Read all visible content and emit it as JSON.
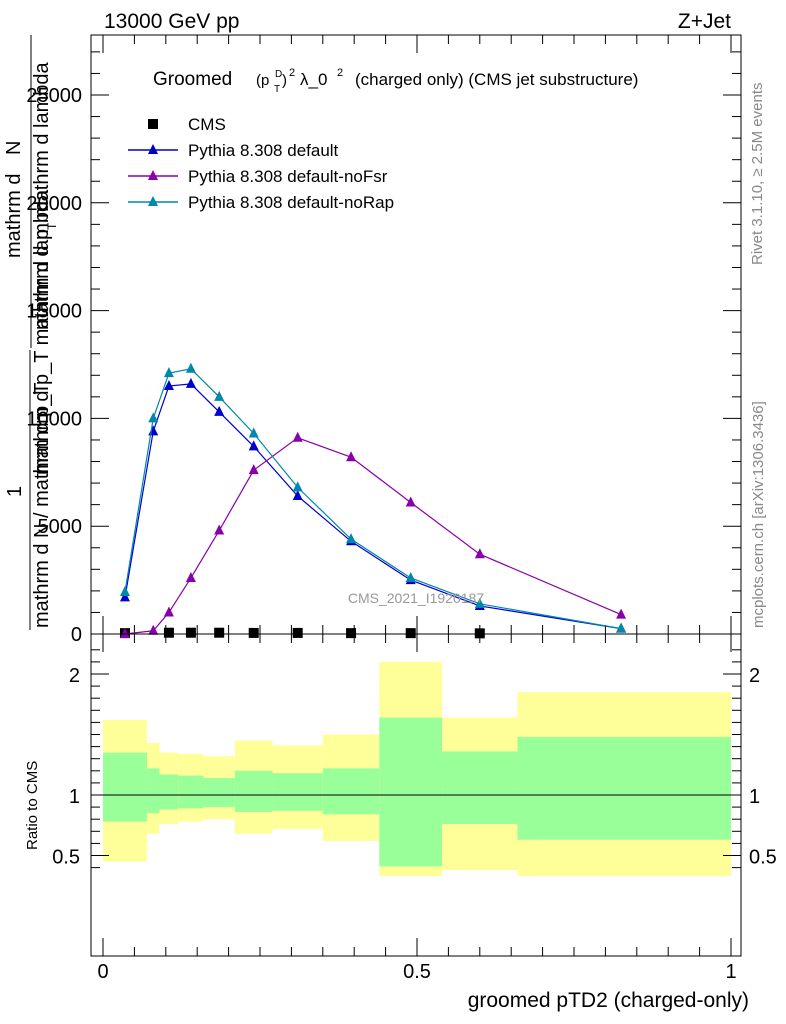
{
  "header": {
    "left": "13000 GeV pp",
    "right": "Z+Jet"
  },
  "side_text": {
    "rivet": "Rivet 3.1.10, ≥ 2.5M events",
    "mcplots": "mcplots.cern.ch [arXiv:1306.3436]"
  },
  "watermark": "CMS_2021_I1920187",
  "title": {
    "main": "Groomed",
    "p": "(p",
    "sup_D": "D",
    "sub_T": "T",
    "close": ")",
    "sup_2": "2",
    "lambda": "λ_0",
    "sup_2b": "2",
    "rest": "(charged only) (CMS jet substructure)"
  },
  "ylabel_main": {
    "one": "1",
    "den": "mathrm d N / mathrm d p_T",
    "num_a": "mathrm d",
    "num_b": "N",
    "num_c": "mathrm d p",
    "num_d": "T",
    "num_e": "mathrm d lambda",
    "overlap": "mathrm d p_T mathrm d lambda"
  },
  "ylabel_ratio": "Ratio to CMS",
  "xlabel": "groomed pTD2 (charged-only)",
  "colors": {
    "cms": "#000000",
    "default": "#0000cc",
    "noFsr": "#8800aa",
    "noRap": "#0088aa",
    "band_outer": "#ffff99",
    "band_inner": "#99ff99"
  },
  "chart_data": [
    {
      "type": "line",
      "panel": "main",
      "xlim": [
        0,
        1
      ],
      "ylim": [
        0,
        25000
      ],
      "yticks": [
        0,
        5000,
        10000,
        15000,
        20000,
        25000
      ],
      "ytick_labels": [
        "0",
        "5000",
        "10000",
        "15000",
        "20000",
        "25000"
      ],
      "legend_position": "top-left",
      "series": [
        {
          "name": "CMS",
          "marker": "square",
          "x": [
            0.035,
            0.105,
            0.14,
            0.185,
            0.24,
            0.31,
            0.395,
            0.49,
            0.6
          ],
          "y": [
            40,
            60,
            60,
            60,
            50,
            50,
            40,
            40,
            30
          ]
        },
        {
          "name": "Pythia 8.308 default",
          "marker": "triangle",
          "x": [
            0.035,
            0.08,
            0.105,
            0.14,
            0.185,
            0.24,
            0.31,
            0.395,
            0.49,
            0.6,
            0.825
          ],
          "y": [
            1700,
            9400,
            11500,
            11600,
            10300,
            8700,
            6400,
            4300,
            2500,
            1300,
            250
          ]
        },
        {
          "name": "Pythia 8.308 default-noFsr",
          "marker": "triangle",
          "x": [
            0.035,
            0.08,
            0.105,
            0.14,
            0.185,
            0.24,
            0.31,
            0.395,
            0.49,
            0.6,
            0.825
          ],
          "y": [
            0,
            150,
            1000,
            2600,
            4800,
            7600,
            9100,
            8200,
            6100,
            3700,
            900
          ]
        },
        {
          "name": "Pythia 8.308 default-noRap",
          "marker": "triangle",
          "x": [
            0.035,
            0.08,
            0.105,
            0.14,
            0.185,
            0.24,
            0.31,
            0.395,
            0.49,
            0.6,
            0.825
          ],
          "y": [
            1950,
            10000,
            12100,
            12300,
            11000,
            9300,
            6800,
            4400,
            2600,
            1400,
            250
          ]
        }
      ]
    },
    {
      "type": "area",
      "panel": "ratio",
      "xlim": [
        0,
        1
      ],
      "ylim": [
        0.33,
        2.33
      ],
      "yticks": [
        0.5,
        1,
        2
      ],
      "ytick_labels": [
        "0.5",
        "1",
        "2"
      ],
      "xticks": [
        0,
        0.5,
        1
      ],
      "xtick_labels": [
        "0",
        "0.5",
        "1"
      ],
      "bins": [
        {
          "x": [
            0.0,
            0.07
          ],
          "outer": [
            0.45,
            1.62
          ],
          "inner": [
            0.78,
            1.35
          ]
        },
        {
          "x": [
            0.07,
            0.09
          ],
          "outer": [
            0.68,
            1.43
          ],
          "inner": [
            0.85,
            1.22
          ]
        },
        {
          "x": [
            0.09,
            0.12
          ],
          "outer": [
            0.76,
            1.35
          ],
          "inner": [
            0.88,
            1.17
          ]
        },
        {
          "x": [
            0.12,
            0.16
          ],
          "outer": [
            0.78,
            1.34
          ],
          "inner": [
            0.89,
            1.16
          ]
        },
        {
          "x": [
            0.16,
            0.21
          ],
          "outer": [
            0.8,
            1.32
          ],
          "inner": [
            0.9,
            1.14
          ]
        },
        {
          "x": [
            0.21,
            0.27
          ],
          "outer": [
            0.68,
            1.45
          ],
          "inner": [
            0.86,
            1.2
          ]
        },
        {
          "x": [
            0.27,
            0.35
          ],
          "outer": [
            0.72,
            1.41
          ],
          "inner": [
            0.87,
            1.18
          ]
        },
        {
          "x": [
            0.35,
            0.44
          ],
          "outer": [
            0.62,
            1.5
          ],
          "inner": [
            0.84,
            1.22
          ]
        },
        {
          "x": [
            0.44,
            0.54
          ],
          "outer": [
            0.33,
            2.1
          ],
          "inner": [
            0.41,
            1.64
          ]
        },
        {
          "x": [
            0.54,
            0.66
          ],
          "outer": [
            0.38,
            1.64
          ],
          "inner": [
            0.76,
            1.36
          ]
        },
        {
          "x": [
            0.66,
            1.0
          ],
          "outer": [
            0.33,
            1.85
          ],
          "inner": [
            0.63,
            1.48
          ]
        }
      ]
    }
  ]
}
